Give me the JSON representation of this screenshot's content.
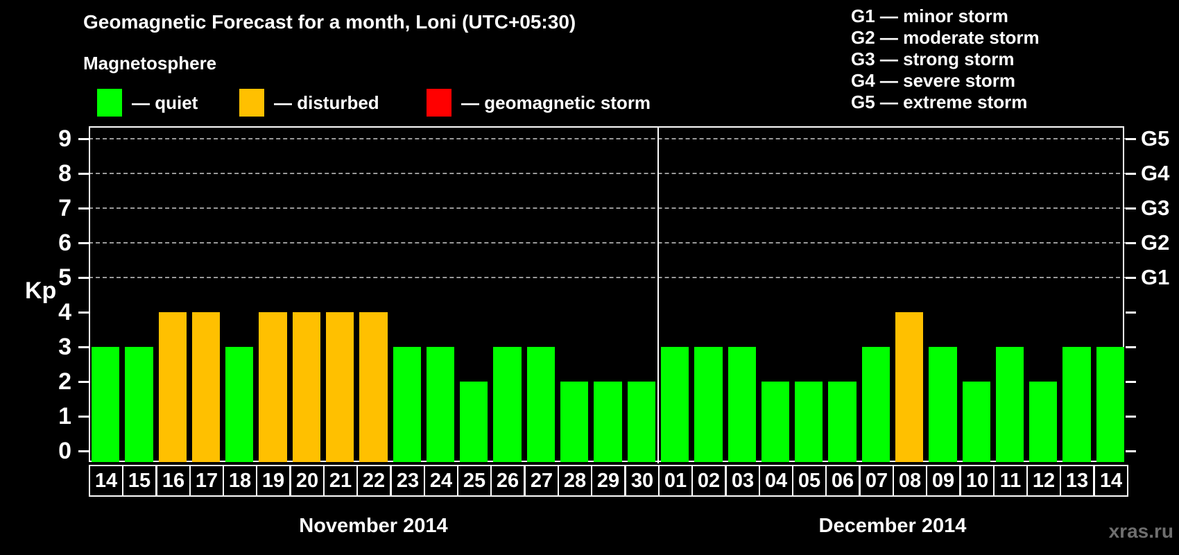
{
  "title": "Geomagnetic Forecast for a month, Loni (UTC+05:30)",
  "legend": {
    "heading": "Magnetosphere",
    "items": [
      {
        "name": "quiet",
        "label": "— quiet",
        "color": "#00ff00"
      },
      {
        "name": "disturbed",
        "label": "— disturbed",
        "color": "#ffc000"
      },
      {
        "name": "storm",
        "label": "— geomagnetic storm",
        "color": "#ff0000"
      }
    ]
  },
  "storm_scale": [
    "G1 — minor storm",
    "G2 — moderate storm",
    "G3 — strong storm",
    "G4 — severe storm",
    "G5 — extreme storm"
  ],
  "watermark": "xras.ru",
  "chart_data": {
    "type": "bar",
    "ylabel": "Kp",
    "ylim": [
      0,
      9
    ],
    "yticks": [
      0,
      1,
      2,
      3,
      4,
      5,
      6,
      7,
      8,
      9
    ],
    "gridline_levels": [
      5,
      6,
      7,
      8,
      9
    ],
    "right_axis_labels": [
      {
        "text": "G1",
        "value": 5
      },
      {
        "text": "G2",
        "value": 6
      },
      {
        "text": "G3",
        "value": 7
      },
      {
        "text": "G4",
        "value": 8
      },
      {
        "text": "G5",
        "value": 9
      }
    ],
    "colors": {
      "quiet": "#00ff00",
      "disturbed": "#ffc000",
      "storm": "#ff0000"
    },
    "color_rule": {
      "disturbed_at_kp": 4,
      "storm_at_kp": 5
    },
    "grid": "dashed horizontal at G-levels only",
    "legend_position": "top",
    "months": [
      {
        "label": "November 2014",
        "days": [
          "14",
          "15",
          "16",
          "17",
          "18",
          "19",
          "20",
          "21",
          "22",
          "23",
          "24",
          "25",
          "26",
          "27",
          "28",
          "29",
          "30"
        ],
        "values": [
          3,
          3,
          4,
          4,
          3,
          4,
          4,
          4,
          4,
          3,
          3,
          2,
          3,
          3,
          2,
          2,
          2
        ]
      },
      {
        "label": "December 2014",
        "days": [
          "01",
          "02",
          "03",
          "04",
          "05",
          "06",
          "07",
          "08",
          "09",
          "10",
          "11",
          "12",
          "13",
          "14"
        ],
        "values": [
          3,
          3,
          3,
          2,
          2,
          2,
          3,
          4,
          3,
          2,
          3,
          2,
          3,
          3
        ]
      }
    ]
  }
}
